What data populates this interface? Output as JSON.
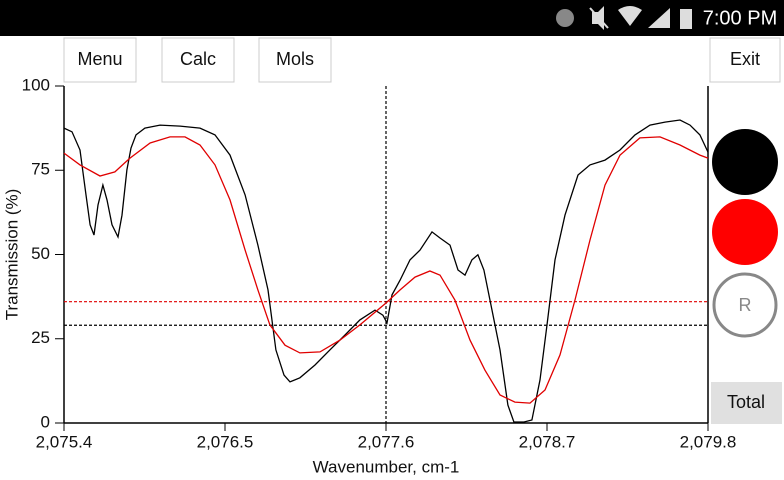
{
  "status_bar": {
    "time": "7:00 PM"
  },
  "buttons": {
    "menu": "Menu",
    "calc": "Calc",
    "mols": "Mols",
    "exit": "Exit",
    "total": "Total",
    "r": "R"
  },
  "chart_data": {
    "type": "line",
    "xlabel": "Wavenumber, cm-1",
    "ylabel": "Transmission (%)",
    "xlim": [
      2075.4,
      2079.8
    ],
    "ylim": [
      0,
      100
    ],
    "xticks": [
      {
        "value": 2075.4,
        "label": "2,075.4"
      },
      {
        "value": 2076.5,
        "label": "2,076.5"
      },
      {
        "value": 2077.6,
        "label": "2,077.6"
      },
      {
        "value": 2078.7,
        "label": "2,078.7"
      },
      {
        "value": 2079.8,
        "label": "2,079.8"
      }
    ],
    "yticks": [
      0,
      25,
      50,
      75,
      100
    ],
    "cursor_x": 2077.6,
    "levels": [
      {
        "value": 36,
        "color": "#e00000"
      },
      {
        "value": 29,
        "color": "#000000"
      }
    ],
    "series": [
      {
        "color": "#000000",
        "x": [
          2075.4,
          2075.455,
          2075.509,
          2075.55,
          2075.578,
          2075.605,
          2075.632,
          2075.666,
          2075.694,
          2075.728,
          2075.769,
          2075.796,
          2075.83,
          2075.858,
          2075.892,
          2075.953,
          2076.056,
          2076.193,
          2076.329,
          2076.432,
          2076.534,
          2076.637,
          2076.725,
          2076.794,
          2076.848,
          2076.903,
          2076.944,
          2077.012,
          2077.115,
          2077.217,
          2077.32,
          2077.422,
          2077.525,
          2077.579,
          2077.607,
          2077.641,
          2077.696,
          2077.764,
          2077.832,
          2077.914,
          2077.969,
          2078.037,
          2078.092,
          2078.14,
          2078.187,
          2078.228,
          2078.269,
          2078.324,
          2078.379,
          2078.433,
          2078.474,
          2078.543,
          2078.597,
          2078.652,
          2078.7,
          2078.755,
          2078.823,
          2078.912,
          2078.994,
          2079.096,
          2079.199,
          2079.301,
          2079.404,
          2079.506,
          2079.609,
          2079.677,
          2079.745,
          2079.8
        ],
        "values": [
          87.5,
          86.4,
          81.0,
          67.7,
          58.8,
          55.8,
          64.7,
          70.6,
          66.2,
          58.8,
          55.2,
          61.7,
          75.1,
          81.6,
          85.5,
          87.5,
          88.4,
          88.1,
          87.5,
          85.5,
          79.5,
          67.7,
          52.8,
          39.5,
          21.7,
          14.2,
          12.2,
          13.4,
          17.2,
          21.7,
          26.1,
          30.6,
          33.5,
          32.0,
          29.7,
          38.0,
          42.4,
          48.4,
          51.3,
          56.7,
          54.9,
          52.8,
          45.4,
          43.9,
          48.4,
          49.9,
          45.4,
          33.5,
          21.7,
          5.3,
          0.3,
          0.3,
          0.9,
          12.8,
          29.1,
          48.4,
          61.7,
          73.6,
          76.6,
          78.0,
          81.0,
          85.5,
          88.4,
          89.3,
          89.9,
          88.4,
          85.5,
          80.4
        ]
      },
      {
        "color": "#e00000",
        "x": [
          2075.4,
          2075.509,
          2075.646,
          2075.748,
          2075.851,
          2075.988,
          2076.124,
          2076.227,
          2076.329,
          2076.432,
          2076.534,
          2076.637,
          2076.725,
          2076.807,
          2076.91,
          2077.012,
          2077.149,
          2077.286,
          2077.422,
          2077.6,
          2077.696,
          2077.798,
          2077.9,
          2077.969,
          2078.071,
          2078.174,
          2078.276,
          2078.379,
          2078.481,
          2078.584,
          2078.686,
          2078.789,
          2078.891,
          2078.994,
          2079.096,
          2079.199,
          2079.335,
          2079.472,
          2079.609,
          2079.745,
          2079.8
        ],
        "values": [
          80.1,
          76.6,
          73.3,
          74.5,
          78.6,
          83.1,
          84.9,
          84.9,
          82.5,
          76.6,
          66.2,
          51.3,
          39.5,
          29.1,
          23.1,
          20.8,
          21.1,
          24.6,
          29.1,
          35.6,
          39.5,
          43.3,
          45.1,
          43.9,
          36.5,
          24.6,
          15.7,
          8.3,
          6.2,
          5.9,
          9.8,
          20.2,
          36.5,
          54.3,
          70.6,
          79.5,
          84.6,
          84.9,
          82.5,
          79.5,
          78.6
        ]
      }
    ]
  }
}
